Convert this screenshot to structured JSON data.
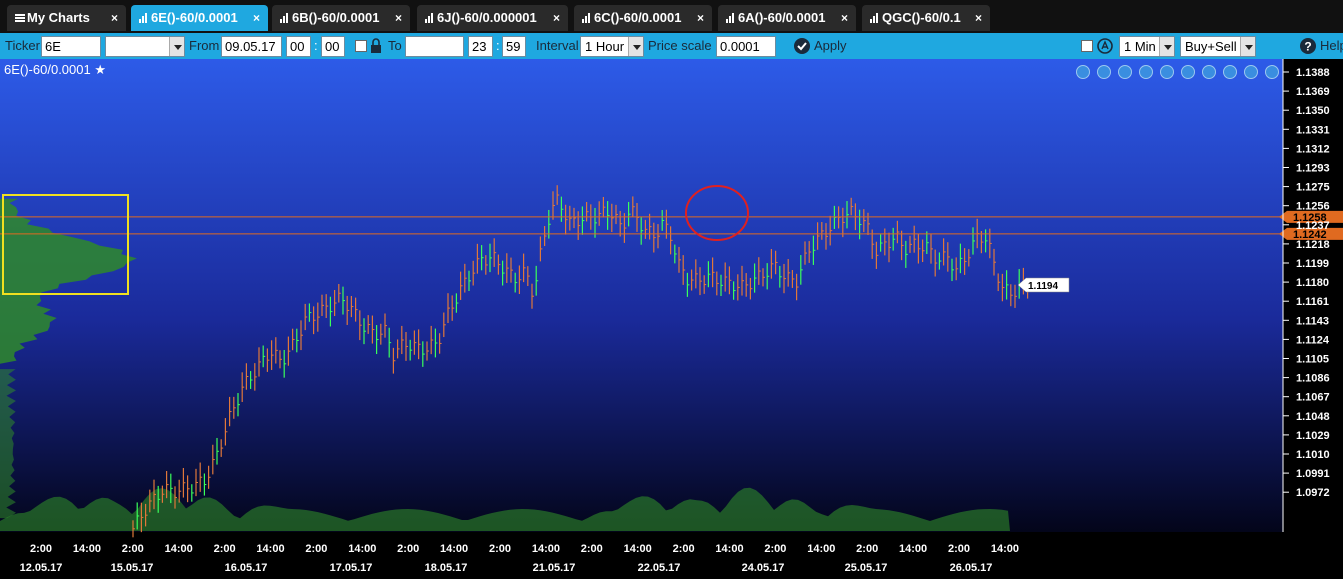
{
  "tabs": [
    {
      "label": "My Charts",
      "active": false
    },
    {
      "label": "6E()-60/0.0001",
      "active": true
    },
    {
      "label": "6B()-60/0.0001",
      "active": false
    },
    {
      "label": "6J()-60/0.000001",
      "active": false
    },
    {
      "label": "6C()-60/0.0001",
      "active": false
    },
    {
      "label": "6A()-60/0.0001",
      "active": false
    },
    {
      "label": "QGC()-60/0.1",
      "active": false
    }
  ],
  "toolbar": {
    "ticker_label": "Ticker",
    "ticker_value": "6E",
    "ticker_select": "",
    "from_label": "From",
    "from_date": "09.05.17",
    "from_hour": "00",
    "from_sep": ":",
    "from_min": "00",
    "to_label": "To",
    "to_date": "",
    "to_hour": "23",
    "to_sep": ":",
    "to_min": "59",
    "interval_label": "Interval",
    "interval_value": "1 Hour",
    "price_scale_label": "Price scale",
    "price_scale_value": "0.0001",
    "apply_label": "Apply",
    "timeframe_value": "1 Min",
    "side_value": "Buy+Sell",
    "help_label": "Help"
  },
  "chart": {
    "title": "6E()-60/0.0001",
    "tool_icons": [
      "move-icon",
      "zoom-in-icon",
      "zoom-out-icon",
      "grid-icon",
      "draw-icon",
      "refresh-icon",
      "settings-icon",
      "fullscreen-icon",
      "close-icon",
      "chevron-down-icon"
    ],
    "colors": {
      "bg_top": "#2d5be8",
      "bg_bottom": "#03051a",
      "bar_down": "#e0773a",
      "bar_up": "#3aff5a",
      "level_line": "#e06a20",
      "profile": "#2f8a2a",
      "highlight_box": "#f0e020",
      "highlight_circle": "#e02020",
      "price_tag_bg": "#ffffff"
    }
  },
  "chart_data": {
    "type": "bar",
    "title": "6E()-60/0.0001",
    "y_ticks": [
      "1.1388",
      "1.1369",
      "1.1350",
      "1.1331",
      "1.1312",
      "1.1293",
      "1.1275",
      "1.1256",
      "1.1237",
      "1.1218",
      "1.1199",
      "1.1180",
      "1.1161",
      "1.1143",
      "1.1124",
      "1.1105",
      "1.1086",
      "1.1067",
      "1.1048",
      "1.1029",
      "1.1010",
      "1.0991",
      "1.0972"
    ],
    "ylim": [
      1.0962,
      1.1395
    ],
    "x_time_ticks": [
      "2:00",
      "14:00",
      "2:00",
      "14:00",
      "2:00",
      "14:00",
      "2:00",
      "14:00",
      "2:00",
      "14:00",
      "2:00",
      "14:00",
      "2:00",
      "14:00",
      "2:00",
      "14:00",
      "2:00",
      "14:00",
      "2:00",
      "14:00",
      "2:00",
      "14:00"
    ],
    "x_date_ticks": [
      "12.05.17",
      "15.05.17",
      "16.05.17",
      "17.05.17",
      "18.05.17",
      "21.05.17",
      "22.05.17",
      "24.05.17",
      "25.05.17",
      "26.05.17"
    ],
    "levels": [
      {
        "label": "1.1258",
        "value": 1.1258
      },
      {
        "label": "1.1242",
        "value": 1.1242
      }
    ],
    "last_price": {
      "label": "1.1194",
      "value": 1.1194
    },
    "price_path": [
      [
        0,
        1.0965
      ],
      [
        10,
        1.0985
      ],
      [
        22,
        1.1002
      ],
      [
        30,
        1.1
      ],
      [
        42,
        1.1004
      ],
      [
        52,
        1.101
      ],
      [
        60,
        1.103
      ],
      [
        70,
        1.1068
      ],
      [
        80,
        1.1098
      ],
      [
        92,
        1.1118
      ],
      [
        100,
        1.1132
      ],
      [
        108,
        1.1122
      ],
      [
        118,
        1.114
      ],
      [
        126,
        1.1162
      ],
      [
        136,
        1.1168
      ],
      [
        144,
        1.1175
      ],
      [
        152,
        1.1182
      ],
      [
        160,
        1.117
      ],
      [
        168,
        1.1155
      ],
      [
        176,
        1.1148
      ],
      [
        184,
        1.115
      ],
      [
        190,
        1.1128
      ],
      [
        198,
        1.114
      ],
      [
        206,
        1.1135
      ],
      [
        214,
        1.1134
      ],
      [
        222,
        1.114
      ],
      [
        230,
        1.1168
      ],
      [
        238,
        1.1188
      ],
      [
        246,
        1.1205
      ],
      [
        254,
        1.1218
      ],
      [
        262,
        1.122
      ],
      [
        270,
        1.121
      ],
      [
        278,
        1.12
      ],
      [
        286,
        1.1206
      ],
      [
        292,
        1.1185
      ],
      [
        298,
        1.123
      ],
      [
        304,
        1.1262
      ],
      [
        310,
        1.1275
      ],
      [
        318,
        1.1252
      ],
      [
        326,
        1.1256
      ],
      [
        336,
        1.1258
      ],
      [
        344,
        1.1262
      ],
      [
        350,
        1.1262
      ],
      [
        356,
        1.1245
      ],
      [
        362,
        1.1266
      ],
      [
        368,
        1.1255
      ],
      [
        374,
        1.1245
      ],
      [
        380,
        1.124
      ],
      [
        386,
        1.1252
      ],
      [
        392,
        1.124
      ],
      [
        398,
        1.1212
      ],
      [
        404,
        1.12
      ],
      [
        412,
        1.1198
      ],
      [
        420,
        1.1202
      ],
      [
        428,
        1.1198
      ],
      [
        436,
        1.1195
      ],
      [
        444,
        1.1192
      ],
      [
        452,
        1.1198
      ],
      [
        460,
        1.1205
      ],
      [
        468,
        1.1212
      ],
      [
        476,
        1.12
      ],
      [
        484,
        1.1198
      ],
      [
        492,
        1.1226
      ],
      [
        500,
        1.1238
      ],
      [
        508,
        1.1248
      ],
      [
        516,
        1.1258
      ],
      [
        524,
        1.1262
      ],
      [
        530,
        1.1256
      ],
      [
        536,
        1.1246
      ],
      [
        542,
        1.1225
      ],
      [
        548,
        1.1232
      ],
      [
        556,
        1.124
      ],
      [
        562,
        1.1228
      ],
      [
        570,
        1.1232
      ],
      [
        578,
        1.123
      ],
      [
        586,
        1.1218
      ],
      [
        594,
        1.122
      ],
      [
        600,
        1.1208
      ],
      [
        608,
        1.1222
      ],
      [
        616,
        1.124
      ],
      [
        622,
        1.1238
      ],
      [
        628,
        1.1212
      ],
      [
        634,
        1.119
      ],
      [
        640,
        1.1186
      ],
      [
        646,
        1.1192
      ],
      [
        652,
        1.1194
      ]
    ],
    "volume_profile": "histogram",
    "volume": "histogram"
  }
}
